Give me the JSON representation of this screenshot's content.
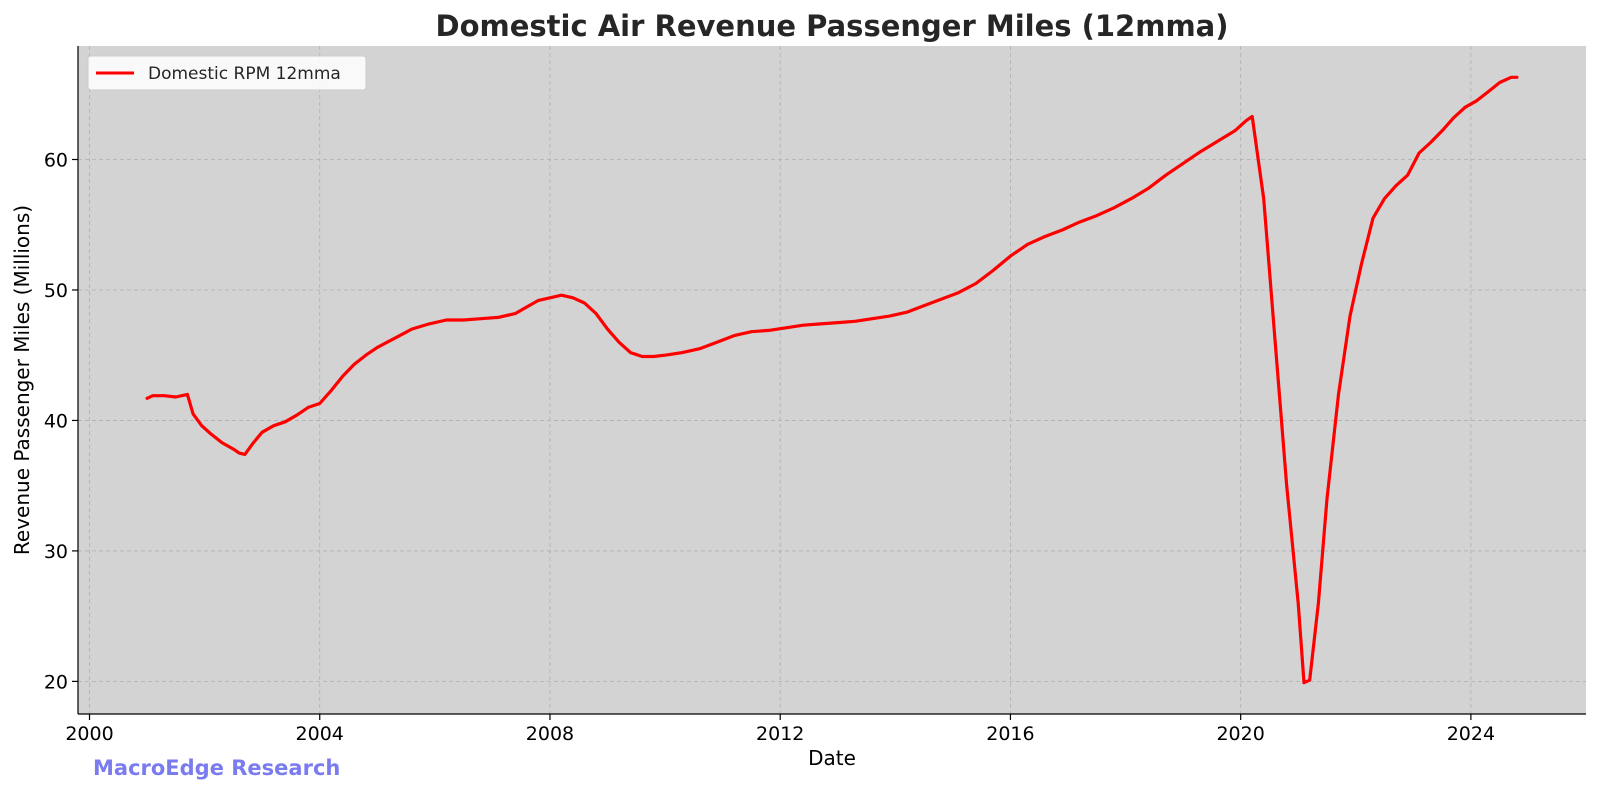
{
  "chart_data": {
    "type": "line",
    "title": "Domestic Air Revenue Passenger Miles (12mma)",
    "xlabel": "Date",
    "ylabel": "Revenue Passenger Miles (Millions)",
    "xlim": [
      1999.8,
      2026.0
    ],
    "ylim": [
      17.5,
      68.7
    ],
    "xticks": [
      2000,
      2004,
      2008,
      2012,
      2016,
      2020,
      2024
    ],
    "yticks": [
      20,
      30,
      40,
      50,
      60
    ],
    "grid": true,
    "legend_position": "top-left",
    "background_color": "#d3d3d3",
    "series": [
      {
        "name": "Domestic RPM 12mma",
        "color": "#ff0000",
        "x": [
          2001.0,
          2001.1,
          2001.3,
          2001.5,
          2001.7,
          2001.8,
          2001.95,
          2002.1,
          2002.3,
          2002.5,
          2002.6,
          2002.7,
          2002.85,
          2003.0,
          2003.2,
          2003.4,
          2003.6,
          2003.8,
          2004.0,
          2004.2,
          2004.4,
          2004.6,
          2004.8,
          2005.0,
          2005.3,
          2005.6,
          2005.9,
          2006.2,
          2006.5,
          2006.8,
          2007.1,
          2007.4,
          2007.6,
          2007.8,
          2008.0,
          2008.2,
          2008.4,
          2008.6,
          2008.8,
          2009.0,
          2009.2,
          2009.4,
          2009.6,
          2009.8,
          2010.0,
          2010.3,
          2010.6,
          2010.9,
          2011.2,
          2011.5,
          2011.8,
          2012.1,
          2012.4,
          2012.7,
          2013.0,
          2013.3,
          2013.6,
          2013.9,
          2014.2,
          2014.5,
          2014.8,
          2015.1,
          2015.4,
          2015.7,
          2016.0,
          2016.3,
          2016.6,
          2016.9,
          2017.2,
          2017.5,
          2017.8,
          2018.1,
          2018.4,
          2018.7,
          2019.0,
          2019.3,
          2019.6,
          2019.9,
          2020.1,
          2020.2,
          2020.4,
          2020.6,
          2020.8,
          2021.0,
          2021.1,
          2021.2,
          2021.35,
          2021.5,
          2021.7,
          2021.9,
          2022.1,
          2022.3,
          2022.5,
          2022.7,
          2022.9,
          2023.1,
          2023.3,
          2023.5,
          2023.7,
          2023.9,
          2024.1,
          2024.3,
          2024.5,
          2024.7,
          2024.8
        ],
        "y": [
          41.7,
          41.9,
          41.9,
          41.8,
          42.0,
          40.5,
          39.6,
          39.0,
          38.3,
          37.8,
          37.5,
          37.4,
          38.3,
          39.1,
          39.6,
          39.9,
          40.4,
          41.0,
          41.3,
          42.3,
          43.4,
          44.3,
          45.0,
          45.6,
          46.3,
          47.0,
          47.4,
          47.7,
          47.7,
          47.8,
          47.9,
          48.2,
          48.7,
          49.2,
          49.4,
          49.6,
          49.4,
          49.0,
          48.2,
          47.0,
          46.0,
          45.2,
          44.9,
          44.9,
          45.0,
          45.2,
          45.5,
          46.0,
          46.5,
          46.8,
          46.9,
          47.1,
          47.3,
          47.4,
          47.5,
          47.6,
          47.8,
          48.0,
          48.3,
          48.8,
          49.3,
          49.8,
          50.5,
          51.5,
          52.6,
          53.5,
          54.1,
          54.6,
          55.2,
          55.7,
          56.3,
          57.0,
          57.8,
          58.8,
          59.7,
          60.6,
          61.4,
          62.2,
          63.0,
          63.3,
          57.0,
          46.0,
          35.0,
          26.0,
          19.9,
          20.1,
          26.0,
          34.0,
          42.0,
          48.0,
          52.0,
          55.5,
          57.0,
          58.0,
          58.8,
          60.5,
          61.3,
          62.2,
          63.2,
          64.0,
          64.5,
          65.2,
          65.9,
          66.3,
          66.3
        ]
      }
    ]
  },
  "watermark": {
    "text": "MacroEdge Research",
    "color": "#7b7bf0"
  }
}
